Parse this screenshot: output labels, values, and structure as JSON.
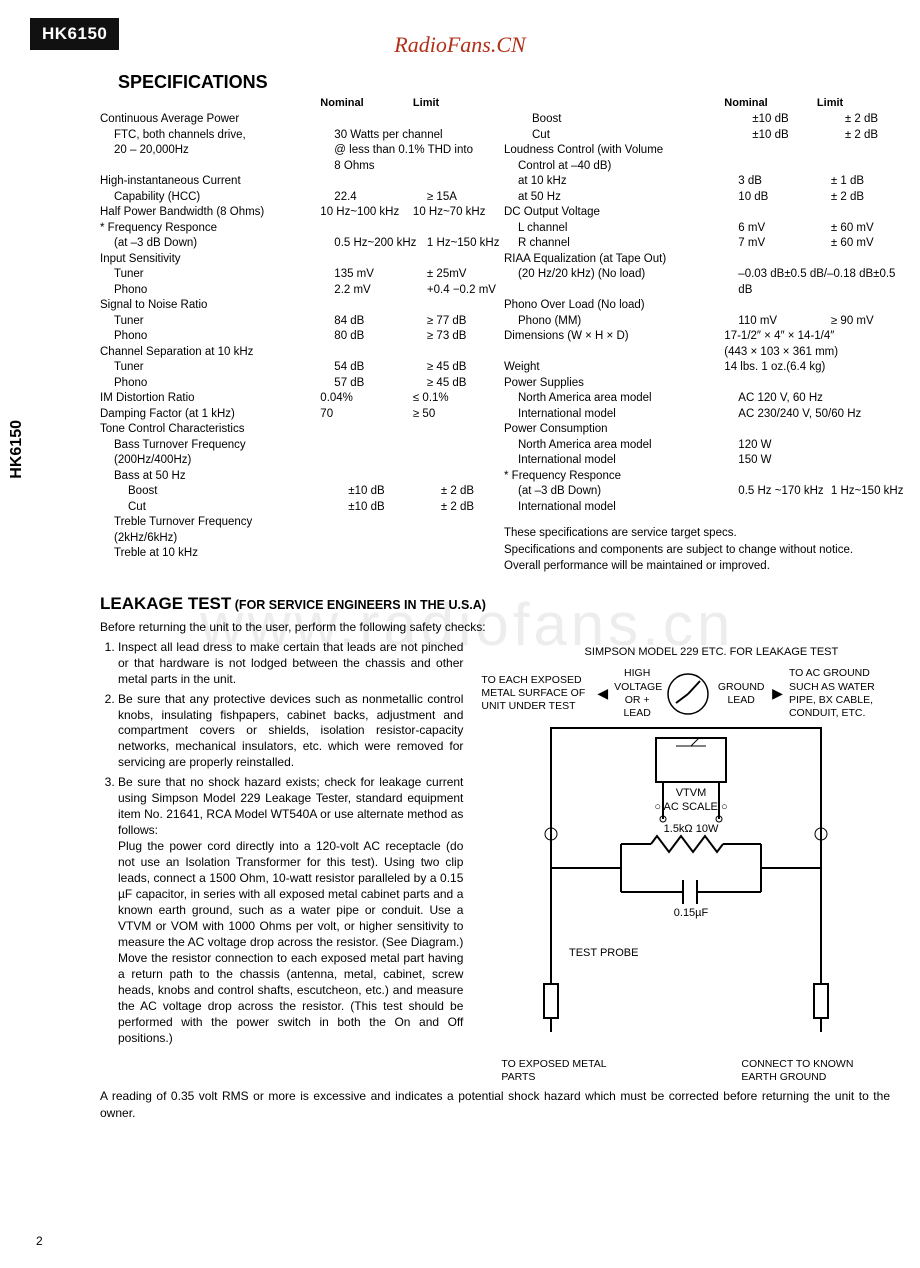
{
  "model": "HK6150",
  "watermark": "RadioFans.CN",
  "big_watermark": "www.radiofans.cn",
  "side_label": "HK6150",
  "specs_title": "SPECIFICATIONS",
  "headers": {
    "nominal": "Nominal",
    "limit": "Limit"
  },
  "left": [
    {
      "label": "Continuous Average Power",
      "i": 0
    },
    {
      "label": "FTC, both channels drive,",
      "i": 1,
      "nomwide": "30 Watts per channel"
    },
    {
      "label": "20 – 20,000Hz",
      "i": 1,
      "nomwide": "@ less than 0.1% THD into"
    },
    {
      "label": "",
      "i": 1,
      "nomwide": "8 Ohms"
    },
    {
      "label": "High-instantaneous Current",
      "i": 0
    },
    {
      "label": "Capability (HCC)",
      "i": 1,
      "nominal": "22.4",
      "limit": "≥ 15A"
    },
    {
      "label": "Half Power Bandwidth (8 Ohms)",
      "i": 0,
      "nominal": "10 Hz~100 kHz",
      "limit": "10 Hz~70 kHz"
    },
    {
      "label": "* Frequency Responce",
      "i": 0
    },
    {
      "label": "(at –3 dB Down)",
      "i": 1,
      "nominal": "0.5 Hz~200 kHz",
      "limit": "1 Hz~150 kHz"
    },
    {
      "label": "Input Sensitivity",
      "i": 0
    },
    {
      "label": "Tuner",
      "i": 1,
      "nominal": "135 mV",
      "limit": "± 25mV"
    },
    {
      "label": "Phono",
      "i": 1,
      "nominal": "2.2 mV",
      "limit": "+0.4 −0.2 mV"
    },
    {
      "label": "Signal to Noise Ratio",
      "i": 0
    },
    {
      "label": "Tuner",
      "i": 1,
      "nominal": "84 dB",
      "limit": "≥ 77 dB"
    },
    {
      "label": "Phono",
      "i": 1,
      "nominal": "80 dB",
      "limit": "≥ 73 dB"
    },
    {
      "label": "Channel Separation at 10 kHz",
      "i": 0
    },
    {
      "label": "Tuner",
      "i": 1,
      "nominal": "54 dB",
      "limit": "≥ 45 dB"
    },
    {
      "label": "Phono",
      "i": 1,
      "nominal": "57 dB",
      "limit": "≥ 45 dB"
    },
    {
      "label": "IM Distortion Ratio",
      "i": 0,
      "nominal": "0.04%",
      "limit": "≤ 0.1%"
    },
    {
      "label": "Damping Factor (at 1 kHz)",
      "i": 0,
      "nominal": "70",
      "limit": "≥ 50"
    },
    {
      "label": "Tone Control Characteristics",
      "i": 0
    },
    {
      "label": "Bass Turnover Frequency",
      "i": 1
    },
    {
      "label": "(200Hz/400Hz)",
      "i": 1
    },
    {
      "label": "Bass at 50 Hz",
      "i": 1
    },
    {
      "label": "Boost",
      "i": 2,
      "nominal": "±10 dB",
      "limit": "± 2 dB"
    },
    {
      "label": "Cut",
      "i": 2,
      "nominal": "±10 dB",
      "limit": "± 2 dB"
    },
    {
      "label": "Treble Turnover Frequency",
      "i": 1
    },
    {
      "label": "(2kHz/6kHz)",
      "i": 1
    },
    {
      "label": "Treble at 10 kHz",
      "i": 1
    }
  ],
  "right": [
    {
      "label": "Boost",
      "i": 2,
      "nominal": "±10 dB",
      "limit": "± 2 dB"
    },
    {
      "label": "Cut",
      "i": 2,
      "nominal": "±10 dB",
      "limit": "± 2 dB"
    },
    {
      "label": "Loudness Control (with Volume",
      "i": 0
    },
    {
      "label": "Control at –40 dB)",
      "i": 1
    },
    {
      "label": "at 10 kHz",
      "i": 1,
      "nominal": "3 dB",
      "limit": "± 1 dB"
    },
    {
      "label": "at 50 Hz",
      "i": 1,
      "nominal": "10 dB",
      "limit": "± 2 dB"
    },
    {
      "label": "DC Output Voltage",
      "i": 0
    },
    {
      "label": "L channel",
      "i": 1,
      "nominal": "6 mV",
      "limit": "± 60 mV"
    },
    {
      "label": "R channel",
      "i": 1,
      "nominal": "7 mV",
      "limit": "± 60 mV"
    },
    {
      "label": "RIAA Equalization (at Tape Out)",
      "i": 0
    },
    {
      "label": "(20 Hz/20 kHz) (No load)",
      "i": 1,
      "nomwide": "–0.03 dB±0.5 dB/–0.18 dB±0.5 dB"
    },
    {
      "label": "Phono Over Load (No load)",
      "i": 0
    },
    {
      "label": "Phono (MM)",
      "i": 1,
      "nominal": "110 mV",
      "limit": "≥ 90 mV"
    },
    {
      "label": "Dimensions (W × H × D)",
      "i": 0,
      "nomwide": "17-1/2″ × 4″ × 14-1/4″"
    },
    {
      "label": "",
      "i": 0,
      "nomwide": "(443 × 103 × 361 mm)"
    },
    {
      "label": "Weight",
      "i": 0,
      "nomwide": "14 lbs. 1 oz.(6.4 kg)"
    },
    {
      "label": "Power Supplies",
      "i": 0
    },
    {
      "label": "North America area model",
      "i": 1,
      "nomwide": "AC 120 V, 60 Hz"
    },
    {
      "label": "International model",
      "i": 1,
      "nomwide": "AC 230/240 V, 50/60 Hz"
    },
    {
      "label": "Power Consumption",
      "i": 0
    },
    {
      "label": "North America area model",
      "i": 1,
      "nomwide": "120 W"
    },
    {
      "label": "International model",
      "i": 1,
      "nomwide": "150 W"
    },
    {
      "label": " ",
      "i": 0
    },
    {
      "label": "* Frequency Responce",
      "i": 0
    },
    {
      "label": "(at –3 dB Down)",
      "i": 1,
      "nominal": "0.5 Hz ~170 kHz",
      "limit": "1 Hz~150 kHz"
    },
    {
      "label": "International model",
      "i": 1
    }
  ],
  "foot1": "These specifications are service target specs.",
  "foot2": "Specifications and components are subject to change without notice. Overall performance will be maintained or improved.",
  "leak_title": "LEAKAGE TEST",
  "leak_sub": " (FOR SERVICE ENGINEERS IN THE U.S.A)",
  "leak_intro": "Before returning the unit to the user, perform the following safety checks:",
  "leak_items": [
    "Inspect all lead dress to make certain that leads are not pinched or that hardware is not lodged between the chassis and other metal parts in the unit.",
    "Be sure that any protective devices such as nonmetallic control knobs, insulating fishpapers, cabinet backs, adjustment and compartment covers or shields, isolation resistor-capacity networks, mechanical insulators, etc. which were removed for servicing are properly reinstalled."
  ],
  "leak_item3a": "Be sure that no shock hazard exists; check for leakage current using Simpson Model 229 Leakage Tester, standard equipment item No. 21641, RCA Model WT540A or use alternate method as follows:",
  "leak_item3b": "Plug the power cord directly into a 120-volt AC receptacle (do not use an Isolation Transformer for this test). Using two clip leads, connect a 1500 Ohm, 10-watt resistor paralleled by a 0.15 µF capacitor, in series with all exposed metal cabinet parts and a known earth ground, such as a water pipe or conduit. Use a VTVM or VOM with 1000 Ohms per volt, or higher sensitivity to measure the AC voltage drop across the resistor. (See Diagram.) Move the resistor connection to each exposed metal part having a return path to the chassis (antenna, metal, cabinet, screw heads, knobs and control shafts, escutcheon, etc.) and measure the AC voltage drop across the resistor. (This test should be performed with the power switch in both the On and Off positions.)",
  "leak_final": "A reading of 0.35 volt RMS or more is excessive and indicates a potential shock hazard which must be corrected before returning the unit to the owner.",
  "diag": {
    "title": "SIMPSON MODEL 229 ETC. FOR LEAKAGE TEST",
    "left_label": "TO EACH EXPOSED METAL SURFACE OF UNIT UNDER TEST",
    "hv": "HIGH VOLTAGE OR + LEAD",
    "gnd": "GROUND LEAD",
    "right_label": "TO AC GROUND SUCH AS WATER PIPE, BX CABLE, CONDUIT, ETC.",
    "vtvm": "VTVM",
    "acscale": "AC SCALE",
    "res": "1.5kΩ 10W",
    "cap": "0.15µF",
    "probe": "TEST PROBE",
    "to_exposed": "TO EXPOSED METAL PARTS",
    "to_ground": "CONNECT TO KNOWN EARTH GROUND"
  },
  "page": "2"
}
